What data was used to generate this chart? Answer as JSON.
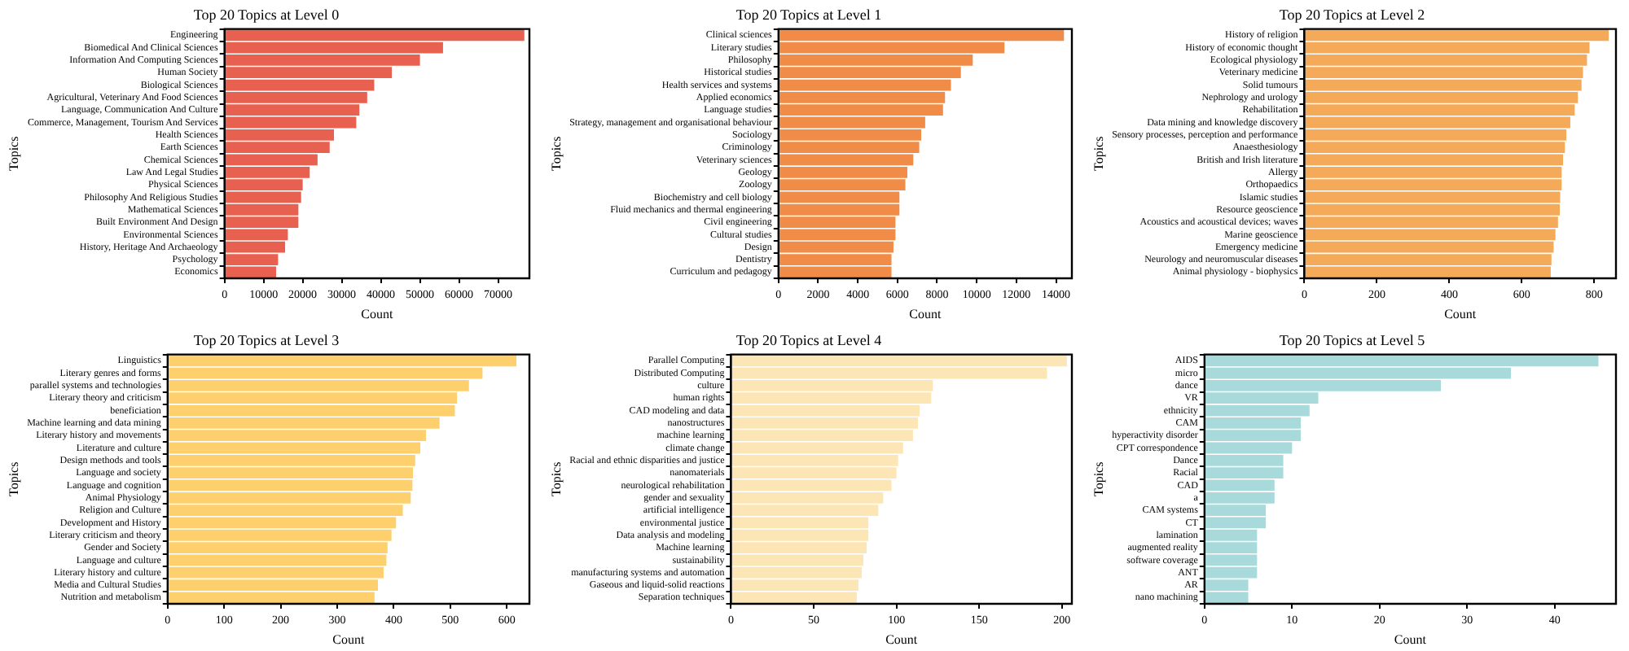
{
  "chart_data": [
    {
      "type": "bar",
      "orientation": "horizontal",
      "title": "Top 20 Topics at Level 0",
      "xlabel": "Count",
      "ylabel": "Topics",
      "color": "#e8604f",
      "grid": false,
      "xlim": [
        0,
        78000
      ],
      "xticks": [
        0,
        10000,
        20000,
        30000,
        40000,
        50000,
        60000,
        70000
      ],
      "categories": [
        "Engineering",
        "Biomedical And Clinical Sciences",
        "Information And Computing Sciences",
        "Human Society",
        "Biological Sciences",
        "Agricultural, Veterinary And Food Sciences",
        "Language, Communication And Culture",
        "Commerce, Management, Tourism And Services",
        "Health Sciences",
        "Earth Sciences",
        "Chemical Sciences",
        "Law And Legal Studies",
        "Physical Sciences",
        "Philosophy And Religious Studies",
        "Mathematical Sciences",
        "Built Environment And Design",
        "Environmental Sciences",
        "History, Heritage And Archaeology",
        "Psychology",
        "Economics"
      ],
      "values": [
        76700,
        55900,
        50000,
        42800,
        38300,
        36500,
        34500,
        33700,
        28000,
        26900,
        23800,
        21800,
        20000,
        19600,
        18900,
        18900,
        16200,
        15500,
        13700,
        13200
      ]
    },
    {
      "type": "bar",
      "orientation": "horizontal",
      "title": "Top 20 Topics at Level 1",
      "xlabel": "Count",
      "ylabel": "Topics",
      "color": "#f08c47",
      "grid": false,
      "xlim": [
        0,
        14800
      ],
      "xticks": [
        0,
        2000,
        4000,
        6000,
        8000,
        10000,
        12000,
        14000
      ],
      "categories": [
        "Clinical sciences",
        "Literary studies",
        "Philosophy",
        "Historical studies",
        "Health services and systems",
        "Applied economics",
        "Language studies",
        "Strategy, management and organisational behaviour",
        "Sociology",
        "Criminology",
        "Veterinary sciences",
        "Geology",
        "Zoology",
        "Biochemistry and cell biology",
        "Fluid mechanics and thermal engineering",
        "Civil engineering",
        "Cultural studies",
        "Design",
        "Dentistry",
        "Curriculum and pedagogy"
      ],
      "values": [
        14400,
        11400,
        9800,
        9200,
        8700,
        8400,
        8300,
        7400,
        7200,
        7100,
        6800,
        6500,
        6400,
        6100,
        6100,
        5900,
        5900,
        5800,
        5700,
        5700
      ]
    },
    {
      "type": "bar",
      "orientation": "horizontal",
      "title": "Top 20 Topics at Level 2",
      "xlabel": "Count",
      "ylabel": "Topics",
      "color": "#f5aa5a",
      "grid": false,
      "xlim": [
        0,
        860
      ],
      "xticks": [
        0,
        200,
        400,
        600,
        800
      ],
      "categories": [
        "History of religion",
        "History of economic thought",
        "Ecological physiology",
        "Veterinary medicine",
        "Solid tumours",
        "Nephrology and urology",
        "Rehabilitation",
        "Data mining and knowledge discovery",
        "Sensory processes, perception and performance",
        "Anaesthesiology",
        "British and Irish literature",
        "Allergy",
        "Orthopaedics",
        "Islamic studies",
        "Resource geoscience",
        "Acoustics and acoustical devices; waves",
        "Marine geoscience",
        "Emergency medicine",
        "Neurology and neuromuscular diseases",
        "Animal physiology - biophysics"
      ],
      "values": [
        840,
        787,
        780,
        769,
        765,
        755,
        746,
        734,
        723,
        719,
        714,
        710,
        710,
        706,
        705,
        700,
        693,
        688,
        682,
        680
      ]
    },
    {
      "type": "bar",
      "orientation": "horizontal",
      "title": "Top 20 Topics at Level 3",
      "xlabel": "Count",
      "ylabel": "Topics",
      "color": "#fdd06d",
      "grid": false,
      "xlim": [
        0,
        640
      ],
      "xticks": [
        0,
        100,
        200,
        300,
        400,
        500,
        600
      ],
      "categories": [
        "Linguistics",
        "Literary genres and forms",
        "parallel systems and technologies",
        "Literary theory and criticism",
        "beneficiation",
        "Machine learning and data mining",
        "Literary history and movements",
        "Literature and culture",
        "Design methods and tools",
        "Language and society",
        "Language and cognition",
        "Animal Physiology",
        "Religion and Culture",
        "Development and History",
        "Literary criticism and theory",
        "Gender and Society",
        "Language and culture",
        "Literary history and culture",
        "Media and Cultural Studies",
        "Nutrition and metabolism"
      ],
      "values": [
        617,
        557,
        533,
        512,
        508,
        481,
        457,
        447,
        438,
        434,
        433,
        430,
        416,
        404,
        396,
        389,
        387,
        382,
        372,
        366
      ]
    },
    {
      "type": "bar",
      "orientation": "horizontal",
      "title": "Top 20 Topics at Level 4",
      "xlabel": "Count",
      "ylabel": "Topics",
      "color": "#fde6b5",
      "grid": false,
      "xlim": [
        0,
        206
      ],
      "xticks": [
        0,
        50,
        100,
        150,
        200
      ],
      "categories": [
        "Parallel Computing",
        "Distributed Computing",
        "culture",
        "human rights",
        "CAD modeling and data",
        "nanostructures",
        "machine learning",
        "climate change",
        "Racial and ethnic disparities and justice",
        "nanomaterials",
        "neurological rehabilitation",
        "gender and sexuality",
        "artificial intelligence",
        "environmental justice",
        "Data analysis and modeling",
        "Machine learning",
        "sustainability",
        "manufacturing systems and automation",
        "Gaseous and liquid-solid reactions",
        "Separation techniques"
      ],
      "values": [
        203,
        191,
        122,
        121,
        114,
        113,
        110,
        104,
        101,
        100,
        97,
        92,
        89,
        83,
        83,
        82,
        80,
        79,
        77,
        76
      ]
    },
    {
      "type": "bar",
      "orientation": "horizontal",
      "title": "Top 20 Topics at Level 5",
      "xlabel": "Count",
      "ylabel": "Topics",
      "color": "#a8dadc",
      "grid": false,
      "xlim": [
        0,
        47
      ],
      "xticks": [
        0,
        10,
        20,
        30,
        40
      ],
      "categories": [
        "AIDS",
        "micro",
        "dance",
        "VR",
        "ethnicity",
        "CAM",
        "hyperactivity disorder",
        "CPT correspondence",
        "Dance",
        "Racial",
        "CAD",
        "a",
        "CAM systems",
        "CT",
        "lamination",
        "augmented reality",
        "software coverage",
        "ANT",
        "AR",
        "nano machining"
      ],
      "values": [
        45,
        35,
        27,
        13,
        12,
        11,
        11,
        10,
        9,
        9,
        8,
        8,
        7,
        7,
        6,
        6,
        6,
        6,
        5,
        5
      ]
    }
  ]
}
